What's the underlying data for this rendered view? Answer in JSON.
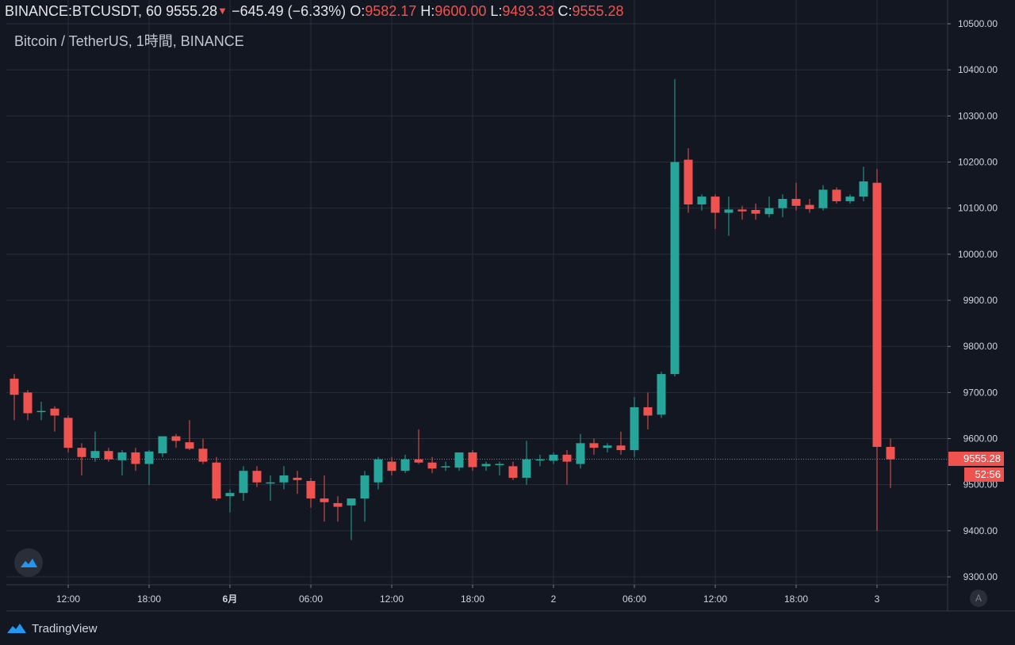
{
  "header": {
    "symbol": "BINANCE:BTCUSDT,",
    "interval": "60",
    "last": "9555.28",
    "change_arrow": "▼",
    "change": "−645.49 (−6.33%)",
    "o_label": "O:",
    "o_value": "9582.17",
    "h_label": "H:",
    "h_value": "9600.00",
    "l_label": "L:",
    "l_value": "9493.33",
    "c_label": "C:",
    "c_value": "9555.28"
  },
  "subtitle": "Bitcoin / TetherUS, 1時間, BINANCE",
  "last_price_tag": "9555.28",
  "countdown_tag": "52:56",
  "footer": {
    "brand": "TradingView"
  },
  "auto_button": "A",
  "colors": {
    "background": "#131722",
    "grid": "#2a2e39",
    "up": "#26a69a",
    "down": "#ef5350",
    "axis_text": "#d1d4dc"
  },
  "chart_data": {
    "type": "candlestick",
    "ylim": [
      9280,
      10510
    ],
    "yticks": [
      9300,
      9400,
      9500,
      9600,
      9700,
      9800,
      9900,
      10000,
      10100,
      10200,
      10300,
      10400,
      10500
    ],
    "ytick_labels": [
      "9300.00",
      "9400.00",
      "9500.00",
      "9600.00",
      "9700.00",
      "9800.00",
      "9900.00",
      "10000.00",
      "10100.00",
      "10200.00",
      "10300.00",
      "10400.00",
      "10500.00"
    ],
    "xticks": [
      {
        "i": 4,
        "label": "12:00"
      },
      {
        "i": 10,
        "label": "18:00"
      },
      {
        "i": 16,
        "label": "6月",
        "bold": true
      },
      {
        "i": 22,
        "label": "06:00"
      },
      {
        "i": 28,
        "label": "12:00"
      },
      {
        "i": 34,
        "label": "18:00"
      },
      {
        "i": 40,
        "label": "2"
      },
      {
        "i": 46,
        "label": "06:00"
      },
      {
        "i": 52,
        "label": "12:00"
      },
      {
        "i": 58,
        "label": "18:00"
      },
      {
        "i": 64,
        "label": "3"
      }
    ],
    "last_price": 9555.28,
    "candles": [
      {
        "o": 9730,
        "h": 9740,
        "l": 9640,
        "c": 9695
      },
      {
        "o": 9700,
        "h": 9705,
        "l": 9640,
        "c": 9655
      },
      {
        "o": 9660,
        "h": 9680,
        "l": 9640,
        "c": 9660
      },
      {
        "o": 9665,
        "h": 9670,
        "l": 9615,
        "c": 9650
      },
      {
        "o": 9645,
        "h": 9650,
        "l": 9570,
        "c": 9580
      },
      {
        "o": 9580,
        "h": 9590,
        "l": 9520,
        "c": 9560
      },
      {
        "o": 9558,
        "h": 9615,
        "l": 9550,
        "c": 9573
      },
      {
        "o": 9573,
        "h": 9580,
        "l": 9550,
        "c": 9555
      },
      {
        "o": 9553,
        "h": 9575,
        "l": 9520,
        "c": 9570
      },
      {
        "o": 9570,
        "h": 9580,
        "l": 9530,
        "c": 9545
      },
      {
        "o": 9545,
        "h": 9575,
        "l": 9500,
        "c": 9572
      },
      {
        "o": 9568,
        "h": 9605,
        "l": 9560,
        "c": 9605
      },
      {
        "o": 9605,
        "h": 9610,
        "l": 9580,
        "c": 9595
      },
      {
        "o": 9592,
        "h": 9640,
        "l": 9575,
        "c": 9578
      },
      {
        "o": 9578,
        "h": 9600,
        "l": 9545,
        "c": 9550
      },
      {
        "o": 9548,
        "h": 9560,
        "l": 9465,
        "c": 9470
      },
      {
        "o": 9475,
        "h": 9490,
        "l": 9440,
        "c": 9482
      },
      {
        "o": 9482,
        "h": 9540,
        "l": 9465,
        "c": 9530
      },
      {
        "o": 9530,
        "h": 9540,
        "l": 9495,
        "c": 9505
      },
      {
        "o": 9505,
        "h": 9520,
        "l": 9465,
        "c": 9505
      },
      {
        "o": 9505,
        "h": 9540,
        "l": 9490,
        "c": 9520
      },
      {
        "o": 9515,
        "h": 9530,
        "l": 9480,
        "c": 9510
      },
      {
        "o": 9508,
        "h": 9515,
        "l": 9450,
        "c": 9470
      },
      {
        "o": 9470,
        "h": 9520,
        "l": 9420,
        "c": 9462
      },
      {
        "o": 9460,
        "h": 9475,
        "l": 9420,
        "c": 9452
      },
      {
        "o": 9455,
        "h": 9470,
        "l": 9380,
        "c": 9470
      },
      {
        "o": 9470,
        "h": 9530,
        "l": 9420,
        "c": 9520
      },
      {
        "o": 9505,
        "h": 9560,
        "l": 9490,
        "c": 9555
      },
      {
        "o": 9550,
        "h": 9560,
        "l": 9520,
        "c": 9530
      },
      {
        "o": 9530,
        "h": 9565,
        "l": 9525,
        "c": 9555
      },
      {
        "o": 9555,
        "h": 9620,
        "l": 9545,
        "c": 9548
      },
      {
        "o": 9548,
        "h": 9560,
        "l": 9525,
        "c": 9535
      },
      {
        "o": 9538,
        "h": 9550,
        "l": 9530,
        "c": 9540
      },
      {
        "o": 9537,
        "h": 9560,
        "l": 9530,
        "c": 9570
      },
      {
        "o": 9570,
        "h": 9575,
        "l": 9530,
        "c": 9538
      },
      {
        "o": 9540,
        "h": 9550,
        "l": 9530,
        "c": 9545
      },
      {
        "o": 9543,
        "h": 9550,
        "l": 9520,
        "c": 9545
      },
      {
        "o": 9540,
        "h": 9550,
        "l": 9510,
        "c": 9515
      },
      {
        "o": 9515,
        "h": 9595,
        "l": 9500,
        "c": 9555
      },
      {
        "o": 9553,
        "h": 9565,
        "l": 9540,
        "c": 9555
      },
      {
        "o": 9552,
        "h": 9570,
        "l": 9545,
        "c": 9565
      },
      {
        "o": 9565,
        "h": 9575,
        "l": 9500,
        "c": 9550
      },
      {
        "o": 9545,
        "h": 9610,
        "l": 9535,
        "c": 9590
      },
      {
        "o": 9590,
        "h": 9600,
        "l": 9565,
        "c": 9580
      },
      {
        "o": 9580,
        "h": 9590,
        "l": 9570,
        "c": 9585
      },
      {
        "o": 9585,
        "h": 9615,
        "l": 9565,
        "c": 9575
      },
      {
        "o": 9575,
        "h": 9690,
        "l": 9560,
        "c": 9668
      },
      {
        "o": 9668,
        "h": 9700,
        "l": 9620,
        "c": 9650
      },
      {
        "o": 9652,
        "h": 9745,
        "l": 9645,
        "c": 9740
      },
      {
        "o": 9740,
        "h": 10380,
        "l": 9735,
        "c": 10200
      },
      {
        "o": 10205,
        "h": 10230,
        "l": 10090,
        "c": 10108
      },
      {
        "o": 10108,
        "h": 10130,
        "l": 10095,
        "c": 10125
      },
      {
        "o": 10125,
        "h": 10130,
        "l": 10055,
        "c": 10090
      },
      {
        "o": 10090,
        "h": 10125,
        "l": 10040,
        "c": 10097
      },
      {
        "o": 10097,
        "h": 10105,
        "l": 10075,
        "c": 10093
      },
      {
        "o": 10096,
        "h": 10110,
        "l": 10075,
        "c": 10088
      },
      {
        "o": 10087,
        "h": 10125,
        "l": 10080,
        "c": 10100
      },
      {
        "o": 10100,
        "h": 10130,
        "l": 10080,
        "c": 10120
      },
      {
        "o": 10120,
        "h": 10155,
        "l": 10095,
        "c": 10105
      },
      {
        "o": 10107,
        "h": 10120,
        "l": 10090,
        "c": 10098
      },
      {
        "o": 10100,
        "h": 10150,
        "l": 10095,
        "c": 10140
      },
      {
        "o": 10140,
        "h": 10145,
        "l": 10110,
        "c": 10115
      },
      {
        "o": 10115,
        "h": 10130,
        "l": 10110,
        "c": 10125
      },
      {
        "o": 10125,
        "h": 10190,
        "l": 10115,
        "c": 10158
      },
      {
        "o": 10155,
        "h": 10185,
        "l": 9400,
        "c": 9582
      },
      {
        "o": 9582,
        "h": 9600,
        "l": 9493,
        "c": 9555
      }
    ]
  }
}
